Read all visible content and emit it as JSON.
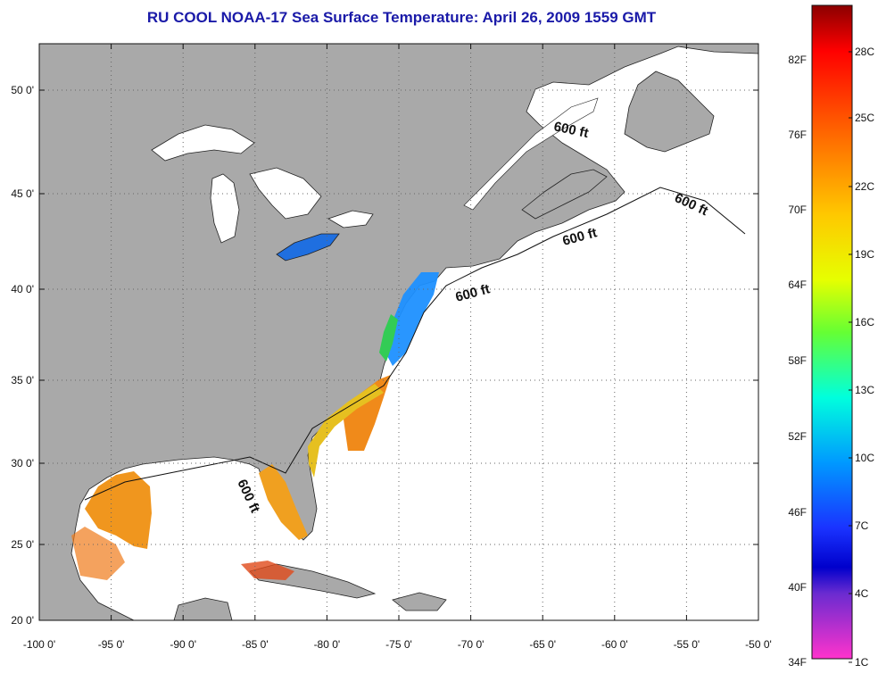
{
  "title": "RU COOL  NOAA-17  Sea Surface Temperature:  April 26, 2009 1559 GMT",
  "map": {
    "lat_ticks": [
      "50 0'",
      "45 0'",
      "40 0'",
      "35 0'",
      "30 0'",
      "25 0'",
      "20 0'"
    ],
    "lon_ticks": [
      "-100 0'",
      "-95 0'",
      "-90 0'",
      "-85 0'",
      "-80 0'",
      "-75 0'",
      "-70 0'",
      "-65 0'",
      "-60 0'",
      "-55 0'",
      "-50 0'"
    ],
    "contour_labels": [
      "600 ft",
      "600 ft",
      "600 ft",
      "600 ft",
      "600 ft"
    ],
    "colors": {
      "land": "#a9a9a9",
      "ocean": "#ffffff",
      "grid": "#555555",
      "title": "#1a1aa8"
    }
  },
  "colorbar": {
    "fahrenheit": [
      "82F",
      "76F",
      "70F",
      "64F",
      "58F",
      "52F",
      "46F",
      "40F",
      "34F"
    ],
    "celsius": [
      "28C",
      "25C",
      "22C",
      "19C",
      "16C",
      "13C",
      "10C",
      "7C",
      "4C",
      "1C"
    ]
  }
}
